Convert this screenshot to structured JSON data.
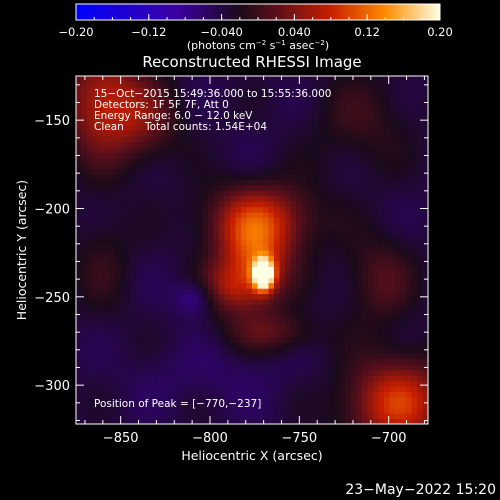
{
  "chart_data": {
    "type": "heatmap",
    "title": "Reconstructed RHESSI Image",
    "xlabel": "Heliocentric X (arcsec)",
    "ylabel": "Heliocentric Y (arcsec)",
    "xlim": [
      -875,
      -678
    ],
    "ylim": [
      -322,
      -125
    ],
    "x_ticks": [
      -850,
      -800,
      -750,
      -700
    ],
    "y_ticks": [
      -150,
      -200,
      -250,
      -300
    ],
    "x_tick_labels": [
      "−850",
      "−800",
      "−750",
      "−700"
    ],
    "y_tick_labels": [
      "−150",
      "−200",
      "−250",
      "−300"
    ],
    "colorbar": {
      "range": [
        -0.2,
        0.2
      ],
      "ticks": [
        -0.2,
        -0.12,
        -0.04,
        0.04,
        0.12,
        0.2
      ],
      "tick_labels": [
        "−0.20",
        "−0.12",
        "−0.040",
        "0.040",
        "0.12",
        "0.20"
      ],
      "unit_prefix": "(photons cm",
      "unit_sup1": "−2",
      "unit_mid1": " s",
      "unit_sup2": "−1",
      "unit_mid2": " asec",
      "unit_sup3": "−2",
      "unit_suffix": ")"
    },
    "annotations": {
      "time_range": "15−Oct−2015 15:49:36.000 to 15:55:36.000",
      "detectors": "Detectors: 1F 5F 7F, Att 0",
      "energy_range": "Energy Range: 6.0 − 12.0 keV",
      "method": "Clean",
      "total_counts": "Total counts: 1.54E+04",
      "peak": "Position of Peak = [−770,−237]"
    },
    "peak": {
      "x": -770,
      "y": -237
    },
    "background": -0.04,
    "features": [
      {
        "x": -770,
        "y": -237,
        "amp": 0.27,
        "sx": 4,
        "sy": 6
      },
      {
        "x": -775,
        "y": -230,
        "amp": 0.12,
        "sx": 14,
        "sy": 18
      },
      {
        "x": -772,
        "y": -205,
        "amp": 0.1,
        "sx": 22,
        "sy": 14
      },
      {
        "x": -790,
        "y": -245,
        "amp": 0.06,
        "sx": 12,
        "sy": 10
      },
      {
        "x": -765,
        "y": -270,
        "amp": 0.05,
        "sx": 18,
        "sy": 8
      },
      {
        "x": -808,
        "y": -250,
        "amp": -0.05,
        "sx": 8,
        "sy": 7
      },
      {
        "x": -860,
        "y": -140,
        "amp": 0.11,
        "sx": 16,
        "sy": 22
      },
      {
        "x": -835,
        "y": -150,
        "amp": 0.05,
        "sx": 14,
        "sy": 16
      },
      {
        "x": -695,
        "y": -310,
        "amp": 0.13,
        "sx": 20,
        "sy": 18
      },
      {
        "x": -705,
        "y": -240,
        "amp": 0.05,
        "sx": 14,
        "sy": 18
      },
      {
        "x": -715,
        "y": -150,
        "amp": 0.035,
        "sx": 20,
        "sy": 20
      },
      {
        "x": -860,
        "y": -230,
        "amp": 0.03,
        "sx": 12,
        "sy": 22
      },
      {
        "x": -800,
        "y": -295,
        "amp": -0.015,
        "sx": 30,
        "sy": 12
      }
    ]
  },
  "footer": {
    "date": "23−May−2022 15:20"
  }
}
